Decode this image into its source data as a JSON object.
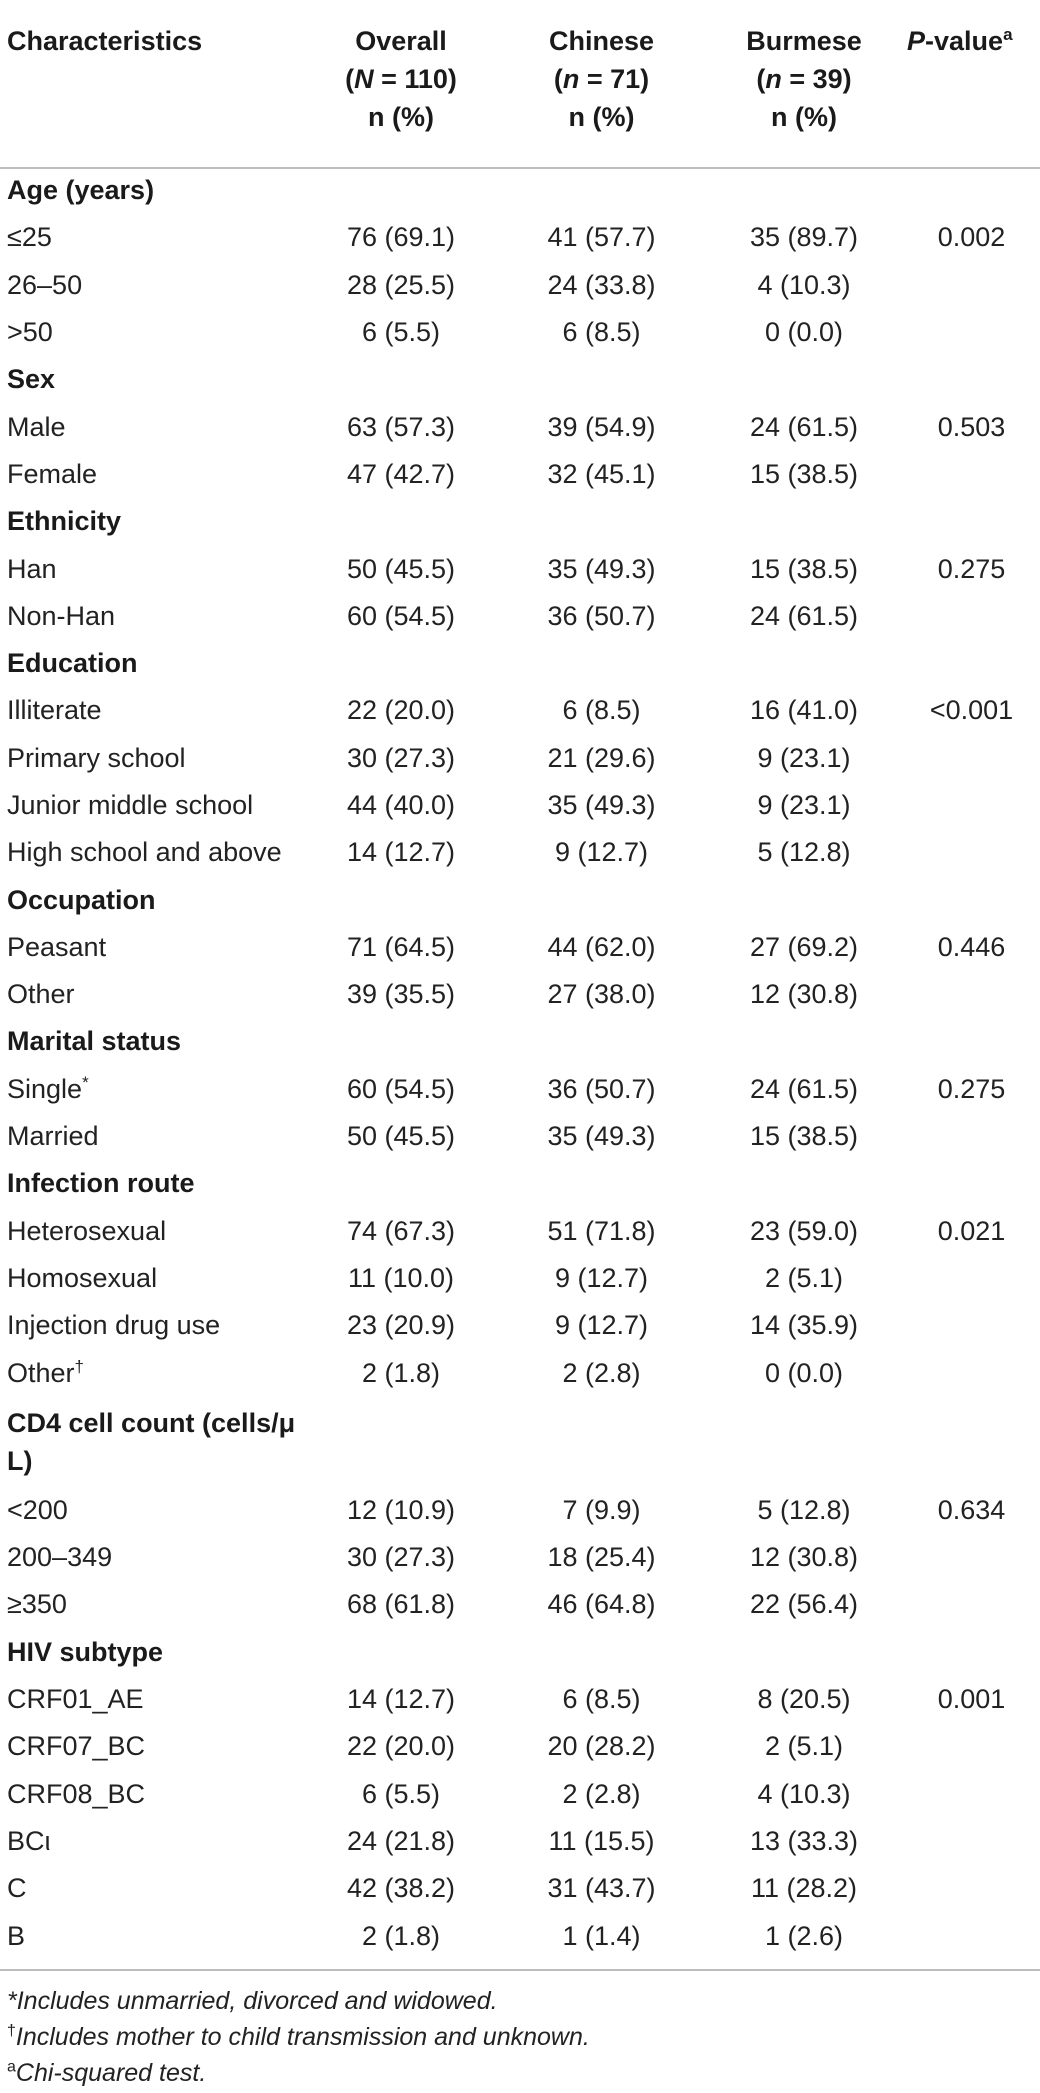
{
  "header": {
    "characteristics": "Characteristics",
    "overall": {
      "line1": "Overall",
      "line2_n": "N",
      "line2_rest": " = 110)",
      "line3": "n (%)"
    },
    "chinese": {
      "line1": "Chinese",
      "line2_n": "n",
      "line2_rest": " = 71)",
      "line3": "n (%)"
    },
    "burmese": {
      "line1": "Burmese",
      "line2_n": "n",
      "line2_rest": " = 39)",
      "line3": "n (%)"
    },
    "pvalue": {
      "p": "P",
      "rest": "-value",
      "sup": "a"
    }
  },
  "rows": [
    {
      "type": "section",
      "label": "Age (years)"
    },
    {
      "label": "≤25",
      "overall": "76 (69.1)",
      "chinese": "41 (57.7)",
      "burmese": "35 (89.7)",
      "p": "0.002"
    },
    {
      "label": "26–50",
      "overall": "28 (25.5)",
      "chinese": "24 (33.8)",
      "burmese": "4 (10.3)",
      "p": ""
    },
    {
      "label": ">50",
      "overall": "6 (5.5)",
      "chinese": "6 (8.5)",
      "burmese": "0 (0.0)",
      "p": ""
    },
    {
      "type": "section",
      "label": "Sex"
    },
    {
      "label": "Male",
      "overall": "63 (57.3)",
      "chinese": "39 (54.9)",
      "burmese": "24 (61.5)",
      "p": "0.503"
    },
    {
      "label": "Female",
      "overall": "47 (42.7)",
      "chinese": "32 (45.1)",
      "burmese": "15 (38.5)",
      "p": ""
    },
    {
      "type": "section",
      "label": "Ethnicity"
    },
    {
      "label": "Han",
      "overall": "50 (45.5)",
      "chinese": "35 (49.3)",
      "burmese": "15 (38.5)",
      "p": "0.275"
    },
    {
      "label": "Non-Han",
      "overall": "60 (54.5)",
      "chinese": "36 (50.7)",
      "burmese": "24 (61.5)",
      "p": ""
    },
    {
      "type": "section",
      "label": "Education"
    },
    {
      "label": "Illiterate",
      "overall": "22 (20.0)",
      "chinese": "6 (8.5)",
      "burmese": "16 (41.0)",
      "p": "<0.001"
    },
    {
      "label": "Primary school",
      "overall": "30 (27.3)",
      "chinese": "21 (29.6)",
      "burmese": "9 (23.1)",
      "p": ""
    },
    {
      "label": "Junior middle school",
      "overall": "44 (40.0)",
      "chinese": "35 (49.3)",
      "burmese": "9 (23.1)",
      "p": ""
    },
    {
      "label": "High school and above",
      "overall": "14 (12.7)",
      "chinese": "9 (12.7)",
      "burmese": "5 (12.8)",
      "p": ""
    },
    {
      "type": "section",
      "label": "Occupation"
    },
    {
      "label": "Peasant",
      "overall": "71 (64.5)",
      "chinese": "44 (62.0)",
      "burmese": "27 (69.2)",
      "p": "0.446"
    },
    {
      "label": "Other",
      "overall": "39 (35.5)",
      "chinese": "27 (38.0)",
      "burmese": "12 (30.8)",
      "p": ""
    },
    {
      "type": "section",
      "label": "Marital status"
    },
    {
      "label": "Single",
      "sup": "*",
      "overall": "60 (54.5)",
      "chinese": "36 (50.7)",
      "burmese": "24 (61.5)",
      "p": "0.275"
    },
    {
      "label": "Married",
      "overall": "50 (45.5)",
      "chinese": "35 (49.3)",
      "burmese": "15 (38.5)",
      "p": ""
    },
    {
      "type": "section",
      "label": "Infection route"
    },
    {
      "label": "Heterosexual",
      "overall": "74 (67.3)",
      "chinese": "51 (71.8)",
      "burmese": "23 (59.0)",
      "p": "0.021"
    },
    {
      "label": "Homosexual",
      "overall": "11 (10.0)",
      "chinese": "9 (12.7)",
      "burmese": "2 (5.1)",
      "p": ""
    },
    {
      "label": "Injection drug use",
      "overall": "23 (20.9)",
      "chinese": "9 (12.7)",
      "burmese": "14 (35.9)",
      "p": ""
    },
    {
      "label": "Other",
      "sup": "†",
      "overall": "2 (1.8)",
      "chinese": "2 (2.8)",
      "burmese": "0 (0.0)",
      "p": ""
    },
    {
      "type": "section",
      "tall": true,
      "label": "CD4 cell count (cells/μ L)"
    },
    {
      "label": "<200",
      "overall": "12 (10.9)",
      "chinese": "7 (9.9)",
      "burmese": "5 (12.8)",
      "p": "0.634"
    },
    {
      "label": "200–349",
      "overall": "30 (27.3)",
      "chinese": "18 (25.4)",
      "burmese": "12 (30.8)",
      "p": ""
    },
    {
      "label": "≥350",
      "overall": "68 (61.8)",
      "chinese": "46 (64.8)",
      "burmese": "22 (56.4)",
      "p": ""
    },
    {
      "type": "section",
      "label": "HIV subtype"
    },
    {
      "label": "CRF01_AE",
      "overall": "14 (12.7)",
      "chinese": "6 (8.5)",
      "burmese": "8 (20.5)",
      "p": "0.001"
    },
    {
      "label": "CRF07_BC",
      "overall": "22 (20.0)",
      "chinese": "20 (28.2)",
      "burmese": "2 (5.1)",
      "p": ""
    },
    {
      "label": "CRF08_BC",
      "overall": "6 (5.5)",
      "chinese": "2 (2.8)",
      "burmese": "4 (10.3)",
      "p": ""
    },
    {
      "label": "BCι",
      "overall": "24 (21.8)",
      "chinese": "11 (15.5)",
      "burmese": "13 (33.3)",
      "p": ""
    },
    {
      "label": "C",
      "overall": "42 (38.2)",
      "chinese": "31 (43.7)",
      "burmese": "11 (28.2)",
      "p": ""
    },
    {
      "label": "B",
      "overall": "2 (1.8)",
      "chinese": "1 (1.4)",
      "burmese": "1 (2.6)",
      "p": ""
    }
  ],
  "footnotes": [
    {
      "mark": "",
      "text": "*Includes unmarried, divorced and widowed."
    },
    {
      "mark": "†",
      "text": "Includes mother to child transmission and unknown."
    },
    {
      "mark": "a",
      "text": "Chi-squared test."
    }
  ]
}
